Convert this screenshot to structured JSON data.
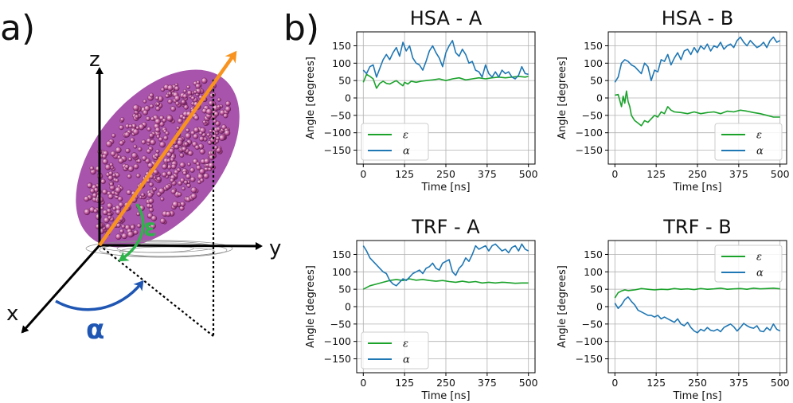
{
  "figure": {
    "panel_a_label": "a)",
    "panel_b_label": "b)",
    "diagram": {
      "axis_x": "x",
      "axis_y": "y",
      "axis_z": "z",
      "epsilon_symbol": "ε",
      "alpha_symbol": "α",
      "colors": {
        "orientation_arrow": "#f7931e",
        "epsilon": "#2db34a",
        "alpha": "#1f56b3",
        "ellipsoid": "#a34ba8"
      }
    },
    "series_colors": {
      "epsilon": "#1aa22b",
      "alpha": "#1f77b4"
    }
  },
  "chart_data": [
    {
      "type": "line",
      "title": "HSA - A",
      "xlabel": "Time [ns]",
      "ylabel": "Angle [degrees]",
      "xlim": [
        -20,
        520
      ],
      "ylim": [
        -190,
        190
      ],
      "xticks": [
        0,
        125,
        250,
        375,
        500
      ],
      "yticks": [
        150,
        100,
        50,
        0,
        -50,
        -100,
        -150
      ],
      "legend": "lower-left",
      "grid": true,
      "series": [
        {
          "name": "ε",
          "x": [
            0,
            10,
            20,
            30,
            40,
            50,
            60,
            70,
            80,
            90,
            100,
            110,
            120,
            125,
            135,
            145,
            160,
            175,
            190,
            210,
            230,
            250,
            270,
            290,
            310,
            330,
            350,
            370,
            390,
            410,
            430,
            450,
            470,
            490,
            500
          ],
          "values": [
            45,
            68,
            62,
            55,
            28,
            42,
            48,
            42,
            40,
            45,
            50,
            42,
            35,
            45,
            40,
            48,
            45,
            48,
            50,
            52,
            55,
            50,
            55,
            58,
            52,
            55,
            58,
            55,
            58,
            60,
            58,
            60,
            62,
            60,
            62
          ]
        },
        {
          "name": "α",
          "x": [
            0,
            10,
            20,
            30,
            40,
            50,
            60,
            70,
            80,
            90,
            100,
            110,
            120,
            130,
            140,
            150,
            160,
            170,
            180,
            190,
            200,
            210,
            220,
            230,
            240,
            250,
            260,
            270,
            280,
            290,
            300,
            310,
            320,
            330,
            340,
            350,
            360,
            370,
            380,
            390,
            400,
            410,
            420,
            430,
            440,
            450,
            460,
            470,
            480,
            490,
            500
          ],
          "values": [
            80,
            70,
            90,
            95,
            60,
            85,
            110,
            125,
            110,
            130,
            145,
            120,
            160,
            135,
            150,
            115,
            100,
            95,
            80,
            105,
            135,
            150,
            130,
            115,
            90,
            130,
            150,
            165,
            130,
            120,
            140,
            125,
            100,
            105,
            80,
            75,
            60,
            95,
            70,
            60,
            75,
            60,
            80,
            70,
            75,
            60,
            55,
            65,
            90,
            70,
            68
          ]
        }
      ]
    },
    {
      "type": "line",
      "title": "HSA - B",
      "xlabel": "Time [ns]",
      "ylabel": "Angle [degrees]",
      "xlim": [
        -20,
        520
      ],
      "ylim": [
        -190,
        190
      ],
      "xticks": [
        0,
        125,
        250,
        375,
        500
      ],
      "yticks": [
        150,
        100,
        50,
        0,
        -50,
        -100,
        -150
      ],
      "legend": "lower-right",
      "grid": true,
      "series": [
        {
          "name": "ε",
          "x": [
            0,
            10,
            20,
            25,
            30,
            35,
            40,
            45,
            50,
            60,
            70,
            80,
            90,
            100,
            110,
            120,
            130,
            140,
            150,
            160,
            170,
            180,
            200,
            220,
            240,
            260,
            280,
            300,
            320,
            340,
            360,
            380,
            400,
            420,
            440,
            460,
            480,
            500
          ],
          "values": [
            8,
            10,
            -25,
            5,
            -15,
            20,
            -10,
            -25,
            -50,
            -65,
            -72,
            -80,
            -65,
            -70,
            -60,
            -50,
            -55,
            -40,
            -45,
            -25,
            -35,
            -40,
            -42,
            -45,
            -40,
            -45,
            -42,
            -40,
            -45,
            -38,
            -40,
            -35,
            -38,
            -42,
            -45,
            -50,
            -55,
            -55
          ]
        },
        {
          "name": "α",
          "x": [
            0,
            10,
            20,
            30,
            40,
            50,
            60,
            70,
            80,
            90,
            100,
            110,
            120,
            130,
            140,
            150,
            160,
            170,
            180,
            190,
            200,
            210,
            220,
            230,
            240,
            250,
            260,
            270,
            280,
            290,
            300,
            310,
            320,
            330,
            340,
            350,
            360,
            370,
            380,
            390,
            400,
            410,
            420,
            430,
            440,
            450,
            460,
            470,
            480,
            490,
            500
          ],
          "values": [
            45,
            60,
            100,
            110,
            105,
            95,
            90,
            80,
            70,
            100,
            90,
            50,
            80,
            75,
            110,
            105,
            125,
            95,
            115,
            130,
            110,
            135,
            140,
            125,
            145,
            130,
            150,
            140,
            155,
            135,
            150,
            145,
            160,
            140,
            150,
            155,
            145,
            165,
            175,
            160,
            150,
            165,
            155,
            145,
            150,
            160,
            145,
            165,
            175,
            160,
            165
          ]
        }
      ]
    },
    {
      "type": "line",
      "title": "TRF - A",
      "xlabel": "Time [ns]",
      "ylabel": "Angle [degrees]",
      "xlim": [
        -20,
        520
      ],
      "ylim": [
        -190,
        190
      ],
      "xticks": [
        0,
        125,
        250,
        375,
        500
      ],
      "yticks": [
        150,
        100,
        50,
        0,
        -50,
        -100,
        -150
      ],
      "legend": "lower-left",
      "grid": true,
      "series": [
        {
          "name": "ε",
          "x": [
            0,
            20,
            40,
            60,
            80,
            100,
            120,
            140,
            160,
            180,
            200,
            220,
            240,
            260,
            280,
            300,
            320,
            340,
            360,
            380,
            400,
            420,
            440,
            460,
            480,
            500
          ],
          "values": [
            50,
            60,
            65,
            70,
            75,
            78,
            75,
            80,
            76,
            78,
            75,
            73,
            75,
            72,
            70,
            73,
            70,
            72,
            68,
            70,
            68,
            70,
            69,
            67,
            68,
            68
          ]
        },
        {
          "name": "α",
          "x": [
            0,
            10,
            20,
            30,
            40,
            50,
            60,
            70,
            80,
            90,
            100,
            110,
            120,
            130,
            140,
            150,
            160,
            170,
            180,
            190,
            200,
            210,
            220,
            230,
            240,
            250,
            260,
            270,
            280,
            290,
            300,
            310,
            320,
            330,
            340,
            350,
            360,
            370,
            380,
            390,
            400,
            410,
            420,
            430,
            440,
            450,
            460,
            470,
            480,
            490,
            500
          ],
          "values": [
            175,
            160,
            140,
            130,
            120,
            110,
            100,
            95,
            75,
            65,
            60,
            70,
            80,
            75,
            85,
            95,
            100,
            105,
            95,
            110,
            115,
            125,
            110,
            105,
            125,
            130,
            135,
            100,
            90,
            110,
            120,
            140,
            130,
            150,
            175,
            165,
            170,
            175,
            160,
            175,
            180,
            170,
            160,
            165,
            155,
            170,
            175,
            160,
            180,
            165,
            160
          ]
        }
      ]
    },
    {
      "type": "line",
      "title": "TRF - B",
      "xlabel": "Time [ns]",
      "ylabel": "Angle [degrees]",
      "xlim": [
        -20,
        520
      ],
      "ylim": [
        -190,
        190
      ],
      "xticks": [
        0,
        125,
        250,
        375,
        500
      ],
      "yticks": [
        150,
        100,
        50,
        0,
        -50,
        -100,
        -150
      ],
      "legend": "upper-right",
      "grid": true,
      "series": [
        {
          "name": "ε",
          "x": [
            0,
            10,
            20,
            30,
            40,
            60,
            80,
            100,
            120,
            140,
            160,
            180,
            200,
            220,
            240,
            260,
            280,
            300,
            320,
            340,
            360,
            380,
            400,
            420,
            440,
            460,
            480,
            500
          ],
          "values": [
            25,
            40,
            45,
            48,
            46,
            48,
            52,
            50,
            48,
            50,
            49,
            52,
            50,
            51,
            49,
            52,
            50,
            51,
            53,
            50,
            51,
            52,
            50,
            53,
            51,
            52,
            53,
            51
          ]
        },
        {
          "name": "α",
          "x": [
            0,
            10,
            20,
            30,
            40,
            50,
            60,
            70,
            80,
            90,
            100,
            110,
            120,
            130,
            140,
            150,
            160,
            170,
            180,
            190,
            200,
            210,
            220,
            230,
            240,
            250,
            260,
            270,
            280,
            290,
            300,
            310,
            320,
            330,
            340,
            350,
            360,
            370,
            380,
            390,
            400,
            410,
            420,
            430,
            440,
            450,
            460,
            470,
            480,
            490,
            500
          ],
          "values": [
            10,
            -5,
            5,
            20,
            28,
            15,
            5,
            -10,
            -15,
            -20,
            -25,
            -25,
            -30,
            -25,
            -35,
            -30,
            -35,
            -40,
            -45,
            -35,
            -50,
            -55,
            -45,
            -60,
            -70,
            -75,
            -65,
            -70,
            -60,
            -68,
            -70,
            -65,
            -72,
            -60,
            -55,
            -50,
            -58,
            -70,
            -60,
            -48,
            -55,
            -60,
            -62,
            -55,
            -70,
            -72,
            -60,
            -68,
            -50,
            -65,
            -70
          ]
        }
      ]
    }
  ]
}
